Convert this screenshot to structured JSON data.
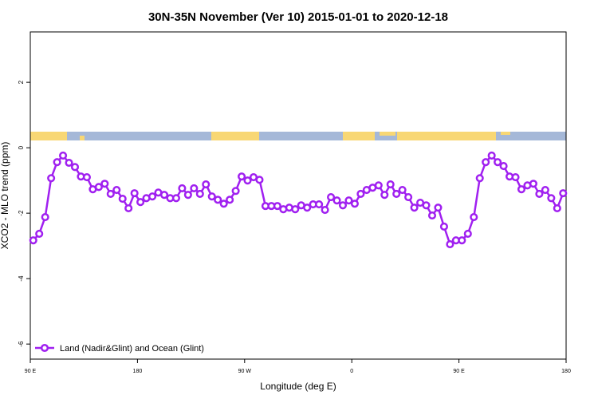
{
  "chart_data": {
    "type": "line",
    "title": "30N-35N November (Ver 10)   2015-01-01 to 2020-12-18",
    "x_label": "Longitude (deg E)",
    "y_label": "XCO2 - MLO trend (ppm)",
    "x": [
      92.5,
      97.5,
      102.5,
      107.5,
      112.5,
      117.5,
      122.5,
      127.5,
      132.5,
      137.5,
      142.5,
      147.5,
      152.5,
      157.5,
      162.5,
      167.5,
      172.5,
      177.5,
      182.5,
      187.5,
      192.5,
      197.5,
      202.5,
      207.5,
      212.5,
      217.5,
      222.5,
      227.5,
      232.5,
      237.5,
      242.5,
      247.5,
      252.5,
      257.5,
      262.5,
      267.5,
      272.5,
      277.5,
      282.5,
      287.5,
      292.5,
      297.5,
      302.5,
      307.5,
      312.5,
      317.5,
      322.5,
      327.5,
      332.5,
      337.5,
      342.5,
      347.5,
      352.5,
      357.5,
      362.5,
      367.5,
      372.5,
      377.5,
      382.5,
      387.5,
      392.5,
      397.5,
      402.5,
      407.5,
      412.5,
      417.5,
      422.5,
      427.5,
      432.5,
      437.5,
      442.5,
      447.5,
      452.5,
      457.5,
      462.5,
      467.5,
      472.5,
      477.5,
      482.5,
      487.5,
      492.5,
      497.5,
      502.5,
      507.5,
      512.5,
      517.5,
      522.5,
      527.5,
      532.5,
      537.5
    ],
    "series": [
      {
        "name": "Land (Nadir&Glint) and Ocean (Glint)",
        "color": "#a020f0",
        "values": [
          -2.83,
          -2.63,
          -2.12,
          -0.93,
          -0.44,
          -0.24,
          -0.46,
          -0.59,
          -0.88,
          -0.9,
          -1.27,
          -1.2,
          -1.1,
          -1.41,
          -1.29,
          -1.56,
          -1.85,
          -1.39,
          -1.66,
          -1.54,
          -1.49,
          -1.37,
          -1.44,
          -1.54,
          -1.54,
          -1.24,
          -1.44,
          -1.24,
          -1.41,
          -1.12,
          -1.49,
          -1.59,
          -1.71,
          -1.59,
          -1.32,
          -0.88,
          -1.0,
          -0.9,
          -0.98,
          -1.78,
          -1.78,
          -1.78,
          -1.88,
          -1.83,
          -1.88,
          -1.76,
          -1.83,
          -1.73,
          -1.73,
          -1.9,
          -1.51,
          -1.61,
          -1.76,
          -1.61,
          -1.71,
          -1.41,
          -1.29,
          -1.22,
          -1.15,
          -1.44,
          -1.12,
          -1.41,
          -1.29,
          -1.51,
          -1.83,
          -1.68,
          -1.76,
          -2.07,
          -1.83,
          -2.41,
          -2.95,
          -2.83,
          -2.83,
          -2.63,
          -2.12,
          -0.93,
          -0.44,
          -0.24,
          -0.44,
          -0.56,
          -0.88,
          -0.9,
          -1.27,
          -1.15,
          -1.1,
          -1.41,
          -1.29,
          -1.54,
          -1.85,
          -1.39
        ]
      }
    ],
    "xlim": [
      90,
      540
    ],
    "xticks": [
      {
        "value": 90,
        "label": "90 E"
      },
      180,
      {
        "value": 270,
        "label": "90 W"
      },
      {
        "value": 360,
        "label": "0"
      },
      {
        "value": 450,
        "label": "90 E"
      },
      {
        "value": 540,
        "label": "180"
      }
    ],
    "ylim": [
      -6.46,
      3.54
    ],
    "yticks": [
      -6,
      -4,
      -2,
      0,
      2
    ],
    "legend_position": "bottom-left"
  }
}
